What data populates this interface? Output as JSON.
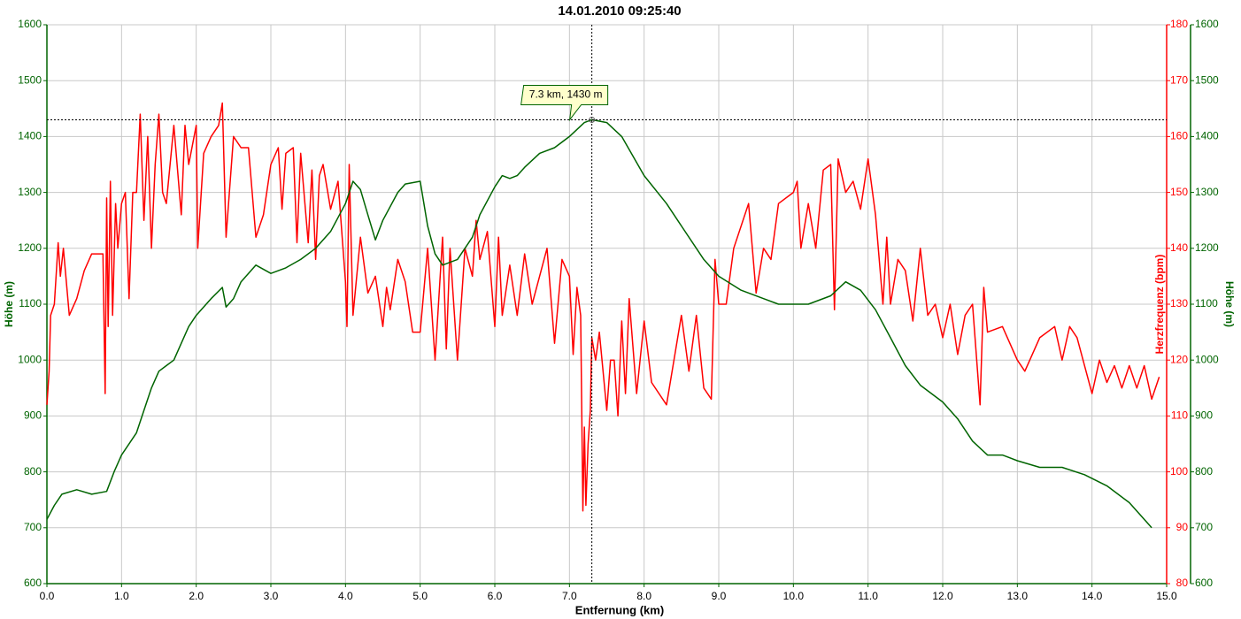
{
  "chart_data": {
    "type": "line",
    "title": "14.01.2010 09:25:40",
    "x_label": "Entfernung (km)",
    "y_label": "Höhe (m)",
    "y2_label": "Herzfrequenz (bpm)",
    "xlim": [
      0,
      15
    ],
    "xticks": [
      {
        "value": 0,
        "label": "0.0"
      },
      {
        "value": 1,
        "label": "1.0"
      },
      {
        "value": 2,
        "label": "2.0"
      },
      {
        "value": 3,
        "label": "3.0"
      },
      {
        "value": 4,
        "label": "4.0"
      },
      {
        "value": 5,
        "label": "5.0"
      },
      {
        "value": 6,
        "label": "6.0"
      },
      {
        "value": 7,
        "label": "7.0"
      },
      {
        "value": 8,
        "label": "8.0"
      },
      {
        "value": 9,
        "label": "9.0"
      },
      {
        "value": 10,
        "label": "10.0"
      },
      {
        "value": 11,
        "label": "11.0"
      },
      {
        "value": 12,
        "label": "12.0"
      },
      {
        "value": 13,
        "label": "13.0"
      },
      {
        "value": 14,
        "label": "14.0"
      },
      {
        "value": 15,
        "label": "15.0"
      }
    ],
    "ylim": [
      600,
      1600
    ],
    "yticks": [
      600,
      700,
      800,
      900,
      1000,
      1100,
      1200,
      1300,
      1400,
      1500,
      1600
    ],
    "y2lim": [
      80,
      180
    ],
    "y2ticks": [
      80,
      90,
      100,
      110,
      120,
      130,
      140,
      150,
      160,
      170,
      180
    ],
    "grid": true,
    "series": [
      {
        "color": "#006400",
        "x": [
          0,
          0.1,
          0.2,
          0.4,
          0.6,
          0.8,
          0.9,
          1.0,
          1.2,
          1.3,
          1.4,
          1.5,
          1.6,
          1.7,
          1.8,
          1.9,
          2.0,
          2.2,
          2.35,
          2.4,
          2.5,
          2.6,
          2.8,
          3.0,
          3.2,
          3.4,
          3.6,
          3.8,
          4.0,
          4.1,
          4.2,
          4.3,
          4.4,
          4.5,
          4.7,
          4.8,
          5.0,
          5.1,
          5.2,
          5.3,
          5.5,
          5.7,
          5.8,
          6.0,
          6.1,
          6.2,
          6.3,
          6.4,
          6.6,
          6.8,
          7.0,
          7.2,
          7.3,
          7.5,
          7.7,
          8.0,
          8.3,
          8.5,
          8.8,
          9.0,
          9.3,
          9.6,
          9.8,
          10.2,
          10.5,
          10.7,
          10.9,
          11.1,
          11.3,
          11.5,
          11.7,
          12.0,
          12.2,
          12.4,
          12.6,
          12.8,
          13.0,
          13.3,
          13.6,
          13.9,
          14.2,
          14.5,
          14.8
        ],
        "values": [
          715,
          740,
          760,
          768,
          760,
          765,
          800,
          830,
          870,
          910,
          950,
          980,
          990,
          1000,
          1030,
          1060,
          1080,
          1110,
          1130,
          1095,
          1110,
          1140,
          1170,
          1155,
          1165,
          1180,
          1200,
          1230,
          1280,
          1320,
          1305,
          1260,
          1215,
          1250,
          1300,
          1315,
          1320,
          1240,
          1190,
          1170,
          1180,
          1220,
          1260,
          1310,
          1330,
          1325,
          1330,
          1345,
          1370,
          1380,
          1400,
          1425,
          1430,
          1425,
          1400,
          1330,
          1280,
          1240,
          1180,
          1150,
          1125,
          1110,
          1100,
          1100,
          1115,
          1140,
          1125,
          1090,
          1040,
          990,
          955,
          925,
          895,
          855,
          830,
          830,
          820,
          808,
          808,
          795,
          775,
          745,
          700
        ]
      },
      {
        "color": "#ff0000",
        "axis": "y2",
        "x": [
          0,
          0.03,
          0.05,
          0.1,
          0.15,
          0.18,
          0.22,
          0.3,
          0.4,
          0.5,
          0.6,
          0.75,
          0.78,
          0.8,
          0.82,
          0.85,
          0.88,
          0.92,
          0.95,
          1.0,
          1.05,
          1.1,
          1.15,
          1.2,
          1.25,
          1.3,
          1.35,
          1.4,
          1.45,
          1.5,
          1.55,
          1.6,
          1.7,
          1.8,
          1.85,
          1.9,
          2.0,
          2.02,
          2.1,
          2.2,
          2.3,
          2.35,
          2.4,
          2.5,
          2.6,
          2.7,
          2.8,
          2.9,
          3.0,
          3.1,
          3.15,
          3.2,
          3.3,
          3.35,
          3.4,
          3.5,
          3.55,
          3.6,
          3.65,
          3.7,
          3.8,
          3.9,
          4.0,
          4.02,
          4.05,
          4.1,
          4.2,
          4.3,
          4.4,
          4.5,
          4.55,
          4.6,
          4.7,
          4.8,
          4.9,
          5.0,
          5.1,
          5.2,
          5.3,
          5.35,
          5.4,
          5.5,
          5.6,
          5.7,
          5.75,
          5.8,
          5.9,
          6.0,
          6.05,
          6.1,
          6.2,
          6.3,
          6.4,
          6.5,
          6.6,
          6.7,
          6.8,
          6.9,
          7.0,
          7.05,
          7.1,
          7.15,
          7.18,
          7.2,
          7.22,
          7.25,
          7.28,
          7.3,
          7.35,
          7.4,
          7.5,
          7.55,
          7.6,
          7.65,
          7.7,
          7.75,
          7.8,
          7.9,
          8.0,
          8.1,
          8.3,
          8.5,
          8.6,
          8.7,
          8.8,
          8.9,
          8.95,
          9.0,
          9.1,
          9.2,
          9.4,
          9.5,
          9.6,
          9.7,
          9.8,
          10.0,
          10.05,
          10.1,
          10.2,
          10.3,
          10.4,
          10.5,
          10.55,
          10.6,
          10.7,
          10.8,
          10.9,
          11.0,
          11.1,
          11.2,
          11.25,
          11.3,
          11.4,
          11.5,
          11.6,
          11.7,
          11.8,
          11.9,
          12.0,
          12.1,
          12.2,
          12.3,
          12.4,
          12.5,
          12.55,
          12.6,
          12.8,
          13.0,
          13.1,
          13.3,
          13.5,
          13.6,
          13.7,
          13.8,
          14.0,
          14.1,
          14.2,
          14.3,
          14.4,
          14.5,
          14.6,
          14.7,
          14.8,
          14.9
        ],
        "values": [
          112,
          118,
          128,
          130,
          141,
          135,
          140,
          128,
          131,
          136,
          139,
          139,
          114,
          149,
          126,
          152,
          128,
          148,
          140,
          148,
          150,
          131,
          150,
          150,
          164,
          145,
          160,
          140,
          155,
          164,
          150,
          148,
          162,
          146,
          162,
          155,
          162,
          140,
          157,
          160,
          162,
          166,
          142,
          160,
          158,
          158,
          142,
          146,
          155,
          158,
          147,
          157,
          158,
          141,
          157,
          141,
          154,
          138,
          153,
          155,
          147,
          152,
          134,
          126,
          155,
          128,
          142,
          132,
          135,
          126,
          133,
          129,
          138,
          134,
          125,
          125,
          140,
          120,
          142,
          122,
          140,
          120,
          140,
          135,
          145,
          138,
          143,
          126,
          142,
          128,
          137,
          128,
          139,
          130,
          135,
          140,
          123,
          138,
          135,
          121,
          133,
          128,
          93,
          108,
          94,
          105,
          111,
          124,
          120,
          125,
          111,
          120,
          120,
          110,
          127,
          114,
          131,
          114,
          127,
          116,
          112,
          128,
          118,
          128,
          115,
          113,
          138,
          130,
          130,
          140,
          148,
          132,
          140,
          138,
          148,
          150,
          152,
          140,
          148,
          140,
          154,
          155,
          129,
          156,
          150,
          152,
          147,
          156,
          146,
          130,
          142,
          130,
          138,
          136,
          127,
          140,
          128,
          130,
          124,
          130,
          121,
          128,
          130,
          112,
          133,
          125,
          126,
          120,
          118,
          124,
          126,
          120,
          126,
          124,
          114,
          120,
          116,
          119,
          115,
          119,
          115,
          119,
          113,
          117
        ]
      }
    ],
    "crosshair": {
      "x": 7.3,
      "y": 1430,
      "label": "7.3 km, 1430 m"
    }
  }
}
